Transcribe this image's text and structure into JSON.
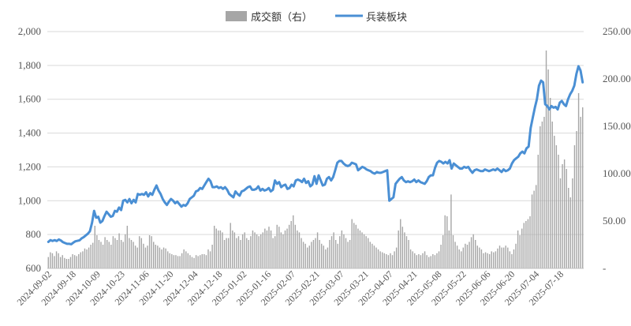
{
  "chart_data": {
    "type": "bar+line",
    "title": "",
    "legend": {
      "position": "top-center",
      "entries": [
        {
          "label": "成交额（右）",
          "kind": "bar",
          "color": "#a6a6a6"
        },
        {
          "label": "兵装板块",
          "kind": "line",
          "color": "#4a8fd4"
        }
      ]
    },
    "y_left": {
      "min": 600,
      "max": 2000,
      "ticks": [
        "600",
        "800",
        "1,000",
        "1,200",
        "1,400",
        "1,600",
        "1,800",
        "2,000"
      ]
    },
    "y_right": {
      "min": 0,
      "max": 250,
      "ticks": [
        "-",
        "50.00",
        "100.00",
        "150.00",
        "200.00",
        "250.00"
      ]
    },
    "x_tick_labels": [
      "2024-09-02",
      "2024-09-18",
      "2024-10-09",
      "2024-10-23",
      "2024-11-06",
      "2024-11-20",
      "2024-12-04",
      "2024-12-18",
      "2025-01-02",
      "2025-01-16",
      "2025-02-07",
      "2025-02-21",
      "2025-03-07",
      "2025-03-21",
      "2025-04-07",
      "2025-04-21",
      "2025-05-08",
      "2025-05-22",
      "2025-06-06",
      "2025-06-20",
      "2025-07-04",
      "2025-07-18"
    ],
    "grid": true,
    "series": [
      {
        "name": "兵装板块",
        "type": "line",
        "axis": "left",
        "color": "#4a8fd4",
        "values": [
          757,
          767,
          762,
          767,
          762,
          771,
          765,
          755,
          750,
          745,
          745,
          743,
          752,
          760,
          763,
          766,
          778,
          785,
          795,
          805,
          820,
          870,
          940,
          900,
          905,
          870,
          880,
          910,
          935,
          920,
          905,
          910,
          940,
          935,
          960,
          945,
          1000,
          1005,
          990,
          1010,
          985,
          1005,
          990,
          1040,
          1035,
          1040,
          1035,
          1050,
          1025,
          1045,
          1035,
          1065,
          1090,
          1060,
          1040,
          1010,
          990,
          975,
          995,
          1010,
          1000,
          985,
          995,
          980,
          965,
          975,
          970,
          985,
          1010,
          1020,
          1030,
          1055,
          1060,
          1075,
          1070,
          1090,
          1110,
          1130,
          1115,
          1080,
          1080,
          1085,
          1075,
          1080,
          1070,
          1080,
          1065,
          1040,
          1030,
          1020,
          1055,
          1040,
          1030,
          1055,
          1060,
          1070,
          1080,
          1085,
          1065,
          1065,
          1070,
          1085,
          1060,
          1070,
          1060,
          1065,
          1075,
          1055,
          1065,
          1120,
          1100,
          1110,
          1080,
          1090,
          1095,
          1070,
          1075,
          1095,
          1085,
          1120,
          1125,
          1120,
          1110,
          1130,
          1105,
          1115,
          1085,
          1095,
          1145,
          1100,
          1150,
          1120,
          1090,
          1095,
          1130,
          1140,
          1120,
          1140,
          1180,
          1225,
          1235,
          1235,
          1220,
          1210,
          1205,
          1210,
          1225,
          1220,
          1215,
          1180,
          1190,
          1200,
          1195,
          1185,
          1180,
          1175,
          1165,
          1160,
          1170,
          1165,
          1165,
          1170,
          1175,
          1180,
          1000,
          1010,
          1020,
          1100,
          1115,
          1130,
          1140,
          1120,
          1110,
          1115,
          1110,
          1115,
          1125,
          1110,
          1120,
          1110,
          1105,
          1100,
          1115,
          1140,
          1150,
          1150,
          1195,
          1225,
          1235,
          1230,
          1220,
          1230,
          1220,
          1240,
          1190,
          1220,
          1210,
          1200,
          1190,
          1190,
          1200,
          1195,
          1200,
          1180,
          1165,
          1180,
          1185,
          1180,
          1175,
          1175,
          1185,
          1180,
          1175,
          1180,
          1185,
          1180,
          1190,
          1180,
          1170,
          1185,
          1175,
          1180,
          1190,
          1220,
          1240,
          1250,
          1260,
          1280,
          1290,
          1280,
          1310,
          1320,
          1430,
          1490,
          1550,
          1600,
          1680,
          1710,
          1700,
          1570,
          1560,
          1540,
          1560,
          1550,
          1555,
          1540,
          1580,
          1590,
          1570,
          1560,
          1600,
          1630,
          1650,
          1680,
          1750,
          1795,
          1770,
          1700
        ]
      },
      {
        "name": "成交额（右）",
        "type": "bar",
        "axis": "right",
        "color": "#a6a6a6",
        "values": [
          12,
          17,
          16,
          13,
          18,
          16,
          12,
          14,
          11,
          10,
          10,
          12,
          15,
          14,
          13,
          15,
          17,
          18,
          21,
          20,
          22,
          25,
          27,
          45,
          35,
          30,
          28,
          25,
          33,
          30,
          28,
          25,
          34,
          32,
          30,
          37,
          30,
          28,
          36,
          45,
          32,
          30,
          28,
          24,
          22,
          34,
          32,
          26,
          22,
          24,
          35,
          34,
          28,
          25,
          24,
          22,
          20,
          22,
          21,
          18,
          16,
          15,
          14,
          14,
          13,
          13,
          16,
          20,
          18,
          16,
          14,
          12,
          11,
          14,
          13,
          14,
          15,
          15,
          14,
          20,
          18,
          25,
          45,
          42,
          40,
          40,
          38,
          30,
          32,
          32,
          48,
          40,
          38,
          32,
          34,
          30,
          36,
          38,
          32,
          30,
          34,
          40,
          38,
          36,
          34,
          36,
          38,
          42,
          40,
          44,
          40,
          32,
          34,
          46,
          44,
          38,
          36,
          40,
          42,
          46,
          50,
          56,
          46,
          40,
          38,
          32,
          28,
          26,
          22,
          24,
          28,
          30,
          32,
          38,
          30,
          26,
          24,
          20,
          22,
          30,
          34,
          38,
          30,
          26,
          34,
          40,
          36,
          32,
          28,
          30,
          52,
          48,
          46,
          42,
          40,
          38,
          36,
          34,
          32,
          28,
          26,
          24,
          22,
          20,
          18,
          17,
          16,
          15,
          14,
          16,
          14,
          18,
          22,
          40,
          52,
          44,
          38,
          34,
          30,
          20,
          18,
          16,
          14,
          15,
          14,
          16,
          18,
          14,
          12,
          13,
          15,
          14,
          16,
          18,
          25,
          35,
          56,
          55,
          40,
          78,
          35,
          28,
          24,
          20,
          18,
          22,
          26,
          25,
          28,
          33,
          36,
          30,
          24,
          22,
          20,
          16,
          17,
          16,
          15,
          18,
          17,
          18,
          21,
          24,
          22,
          22,
          24,
          22,
          18,
          15,
          20,
          26,
          40,
          35,
          42,
          48,
          50,
          52,
          55,
          78,
          82,
          88,
          120,
          150,
          155,
          160,
          230,
          210,
          180,
          155,
          140,
          130,
          120,
          95,
          110,
          115,
          105,
          85,
          75,
          95,
          130,
          145,
          185,
          160,
          170
        ]
      }
    ]
  }
}
